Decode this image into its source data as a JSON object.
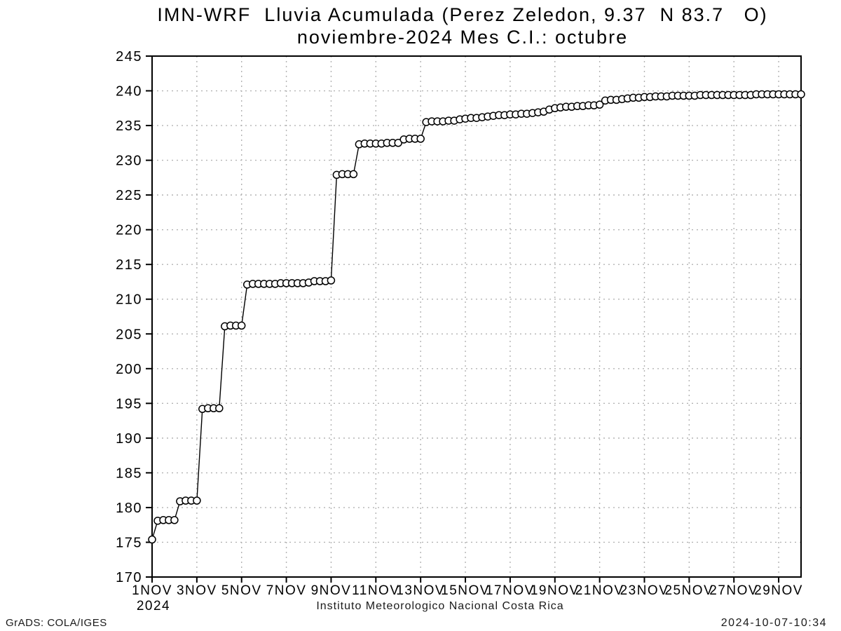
{
  "header": {
    "title_line1": "IMN-WRF  Lluvia Acumulada (Perez Zeledon, 9.37  N 83.7   O)",
    "title_line2": "noviembre-2024 Mes C.I.: octubre"
  },
  "footer": {
    "caption": "Instituto Meteorologico Nacional Costa Rica",
    "credit": "GrADS: COLA/IGES",
    "timestamp": "2024-10-07-10:34"
  },
  "chart_data": {
    "type": "line",
    "title": "IMN-WRF  Lluvia Acumulada (Perez Zeledon, 9.37  N 83.7   O)",
    "subtitle": "noviembre-2024 Mes C.I.: octubre",
    "series_name": "accumulated-rainfall-mm",
    "marker": "open-circle",
    "grid": true,
    "xlabel": "",
    "ylabel": "",
    "xlim": [
      1,
      30
    ],
    "ylim": [
      170,
      245
    ],
    "ytick_start": 170,
    "ytick_step": 5,
    "ytick_labels": [
      "170",
      "175",
      "180",
      "185",
      "190",
      "195",
      "200",
      "205",
      "210",
      "215",
      "220",
      "225",
      "230",
      "235",
      "240",
      "245"
    ],
    "xticks": [
      {
        "day": 1,
        "label": "1NOV"
      },
      {
        "day": 3,
        "label": "3NOV"
      },
      {
        "day": 5,
        "label": "5NOV"
      },
      {
        "day": 7,
        "label": "7NOV"
      },
      {
        "day": 9,
        "label": "9NOV"
      },
      {
        "day": 11,
        "label": "11NOV"
      },
      {
        "day": 13,
        "label": "13NOV"
      },
      {
        "day": 15,
        "label": "15NOV"
      },
      {
        "day": 17,
        "label": "17NOV"
      },
      {
        "day": 19,
        "label": "19NOV"
      },
      {
        "day": 21,
        "label": "21NOV"
      },
      {
        "day": 23,
        "label": "23NOV"
      },
      {
        "day": 25,
        "label": "25NOV"
      },
      {
        "day": 27,
        "label": "27NOV"
      },
      {
        "day": 29,
        "label": "29NOV"
      }
    ],
    "year_label": "2024",
    "x_start": 1,
    "x_step": 0.25,
    "values": [
      175.4,
      178.1,
      178.2,
      178.2,
      178.2,
      180.9,
      181.0,
      181.0,
      181.0,
      194.2,
      194.3,
      194.3,
      194.3,
      206.1,
      206.2,
      206.2,
      206.2,
      212.1,
      212.2,
      212.2,
      212.2,
      212.2,
      212.2,
      212.3,
      212.3,
      212.3,
      212.3,
      212.3,
      212.4,
      212.6,
      212.6,
      212.6,
      212.7,
      227.9,
      228.0,
      228.0,
      228.0,
      232.3,
      232.4,
      232.4,
      232.4,
      232.4,
      232.5,
      232.5,
      232.5,
      233.0,
      233.1,
      233.1,
      233.1,
      235.5,
      235.6,
      235.6,
      235.6,
      235.7,
      235.7,
      235.9,
      236.0,
      236.1,
      236.1,
      236.2,
      236.3,
      236.4,
      236.5,
      236.5,
      236.6,
      236.6,
      236.7,
      236.7,
      236.8,
      236.9,
      237.0,
      237.3,
      237.5,
      237.6,
      237.7,
      237.7,
      237.8,
      237.8,
      237.9,
      237.9,
      238.0,
      238.6,
      238.7,
      238.7,
      238.8,
      238.9,
      239.0,
      239.0,
      239.1,
      239.1,
      239.2,
      239.2,
      239.2,
      239.3,
      239.3,
      239.3,
      239.3,
      239.3,
      239.4,
      239.4,
      239.4,
      239.4,
      239.4,
      239.4,
      239.4,
      239.4,
      239.4,
      239.4,
      239.5,
      239.5,
      239.5,
      239.5,
      239.5,
      239.5,
      239.5,
      239.5,
      239.5
    ],
    "colors": {
      "line": "#000000",
      "marker_fill": "#ffffff",
      "grid": "#b3b3b3",
      "axis": "#000000",
      "background": "#ffffff"
    }
  }
}
